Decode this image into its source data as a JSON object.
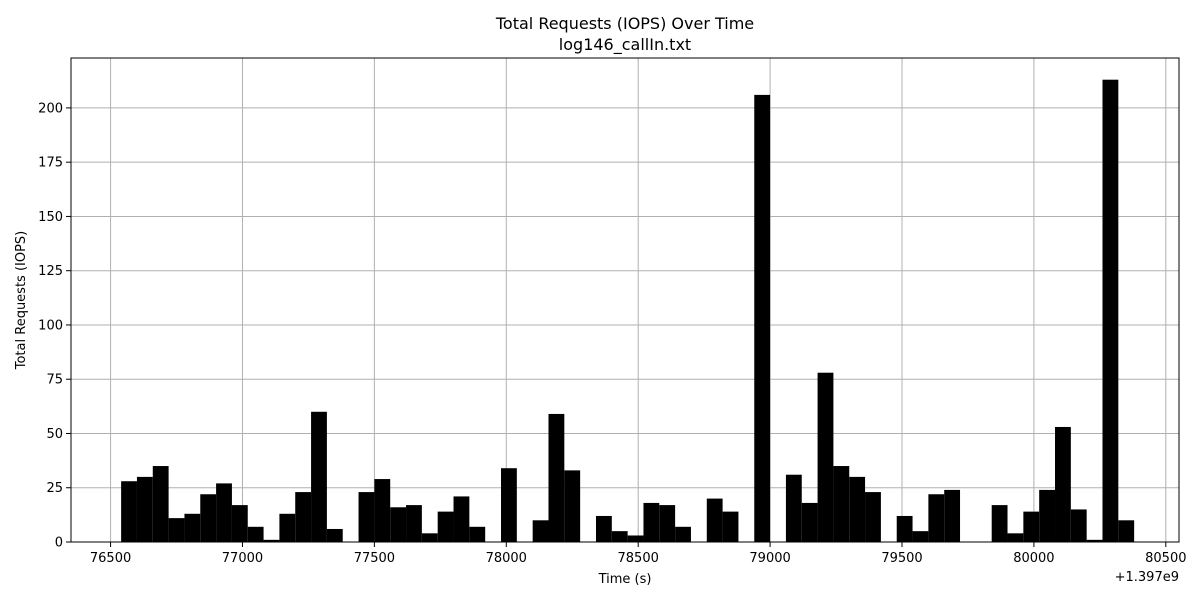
{
  "chart_data": {
    "type": "bar",
    "title": "Total Requests (IOPS) Over Time",
    "subtitle": "log146_callIn.txt",
    "xlabel": "Time (s)",
    "ylabel": "Total Requests (IOPS)",
    "x_offset_label": "+1.397e9",
    "xlim": [
      76350,
      80550
    ],
    "ylim": [
      0,
      223
    ],
    "x_ticks": [
      76500,
      77000,
      77500,
      78000,
      78500,
      79000,
      79500,
      80000,
      80500
    ],
    "y_ticks": [
      0,
      25,
      50,
      75,
      100,
      125,
      150,
      175,
      200
    ],
    "grid": true,
    "bar_color": "#000000",
    "bin_width": 60,
    "bin_start": 76540,
    "values": [
      28,
      30,
      35,
      11,
      13,
      22,
      27,
      17,
      7,
      1,
      13,
      23,
      60,
      6,
      0,
      23,
      29,
      16,
      17,
      4,
      14,
      21,
      7,
      0,
      34,
      0,
      10,
      59,
      33,
      0,
      12,
      5,
      3,
      18,
      17,
      7,
      0,
      20,
      14,
      0,
      206,
      0,
      31,
      18,
      78,
      35,
      30,
      23,
      0,
      12,
      5,
      22,
      24,
      0,
      0,
      17,
      4,
      14,
      24,
      53,
      15,
      1,
      213,
      10
    ]
  }
}
